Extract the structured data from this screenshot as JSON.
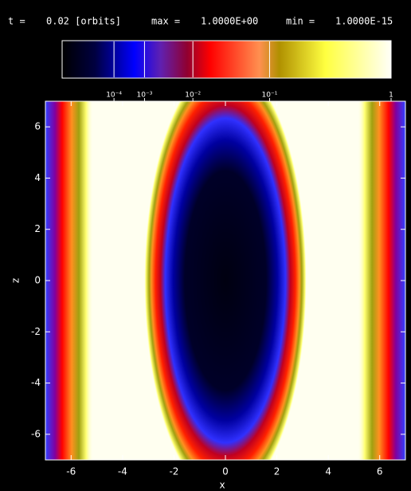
{
  "chart_data": {
    "type": "heatmap",
    "time_label": "t =",
    "time_value": "0.02 [orbits]",
    "max_label": "max =",
    "max_value": "1.0000E+00",
    "min_label": "min =",
    "min_value": "1.0000E-15",
    "xlabel": "x",
    "ylabel": "z",
    "xlim": [
      -7,
      7
    ],
    "ylim": [
      -7,
      7
    ],
    "xticks": [
      -6,
      -4,
      -2,
      0,
      2,
      4,
      6
    ],
    "yticks": [
      -6,
      -4,
      -2,
      0,
      2,
      4,
      6
    ],
    "colorbar": {
      "lim": [
        1e-15,
        1
      ],
      "power": 0.2,
      "ticks": [
        {
          "value": 0.0001,
          "label": "10⁻⁴"
        },
        {
          "value": 0.001,
          "label": "10⁻³"
        },
        {
          "value": 0.01,
          "label": "10⁻²"
        },
        {
          "value": 0.1,
          "label": "10⁻¹"
        },
        1
      ]
    }
  }
}
